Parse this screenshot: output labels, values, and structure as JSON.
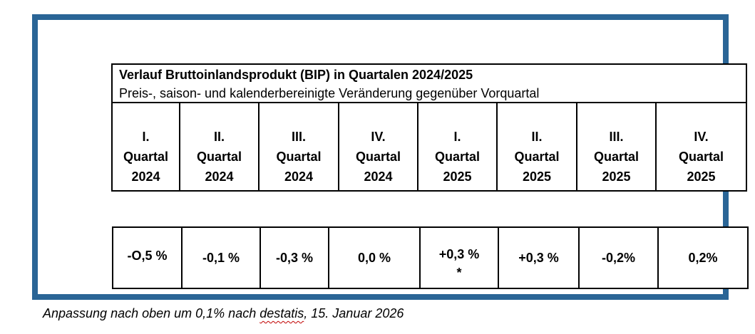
{
  "colors": {
    "frame_blue": "#2A6596",
    "squiggle_red": "#C00000"
  },
  "table": {
    "title": "Verlauf Bruttoinlandsprodukt (BIP) in Quartalen 2024/2025",
    "subtitle": "Preis-, saison- und kalenderbereinigte Veränderung gegenüber Vorquartal",
    "quarters": [
      {
        "numeral": "I.",
        "label": "Quartal",
        "year": "2024"
      },
      {
        "numeral": "II.",
        "label": "Quartal",
        "year": "2024"
      },
      {
        "numeral": "III.",
        "label": "Quartal",
        "year": "2024"
      },
      {
        "numeral": "IV.",
        "label": "Quartal",
        "year": "2024"
      },
      {
        "numeral": "I.",
        "label": "Quartal",
        "year": "2025"
      },
      {
        "numeral": "II.",
        "label": "Quartal",
        "year": "2025"
      },
      {
        "numeral": "III.",
        "label": "Quartal",
        "year": "2025"
      },
      {
        "numeral": "IV.",
        "label": "Quartal",
        "year": "2025"
      }
    ],
    "values": [
      "-O,5 %",
      "-0,1 %",
      "-0,3 %",
      "0,0 %",
      "+0,3 %",
      "+0,3 %",
      "-0,2%",
      "0,2%"
    ],
    "footnote_marker": "*"
  },
  "footnote": {
    "text_before": "Anpassung nach oben um 0,1% nach ",
    "misspelled_word": "destatis",
    "text_after": ", 15. Januar 2026"
  },
  "chart_data": {
    "type": "table",
    "title": "Verlauf Bruttoinlandsprodukt (BIP) in Quartalen 2024/2025",
    "subtitle": "Preis-, saison- und kalenderbereinigte Veränderung gegenüber Vorquartal",
    "categories": [
      "I. Quartal 2024",
      "II. Quartal 2024",
      "III. Quartal 2024",
      "IV. Quartal 2024",
      "I. Quartal 2025",
      "II. Quartal 2025",
      "III. Quartal 2025",
      "IV. Quartal 2025"
    ],
    "values": [
      -0.5,
      -0.1,
      -0.3,
      0.0,
      0.3,
      0.3,
      -0.2,
      0.2
    ],
    "unit": "%",
    "value_labels": [
      "-O,5 %",
      "-0,1 %",
      "-0,3 %",
      "0,0 %",
      "+0,3 % *",
      "+0,3 %",
      "-0,2%",
      "0,2%"
    ],
    "annotation": "* Anpassung nach oben um 0,1% nach destatis, 15. Januar 2026"
  }
}
